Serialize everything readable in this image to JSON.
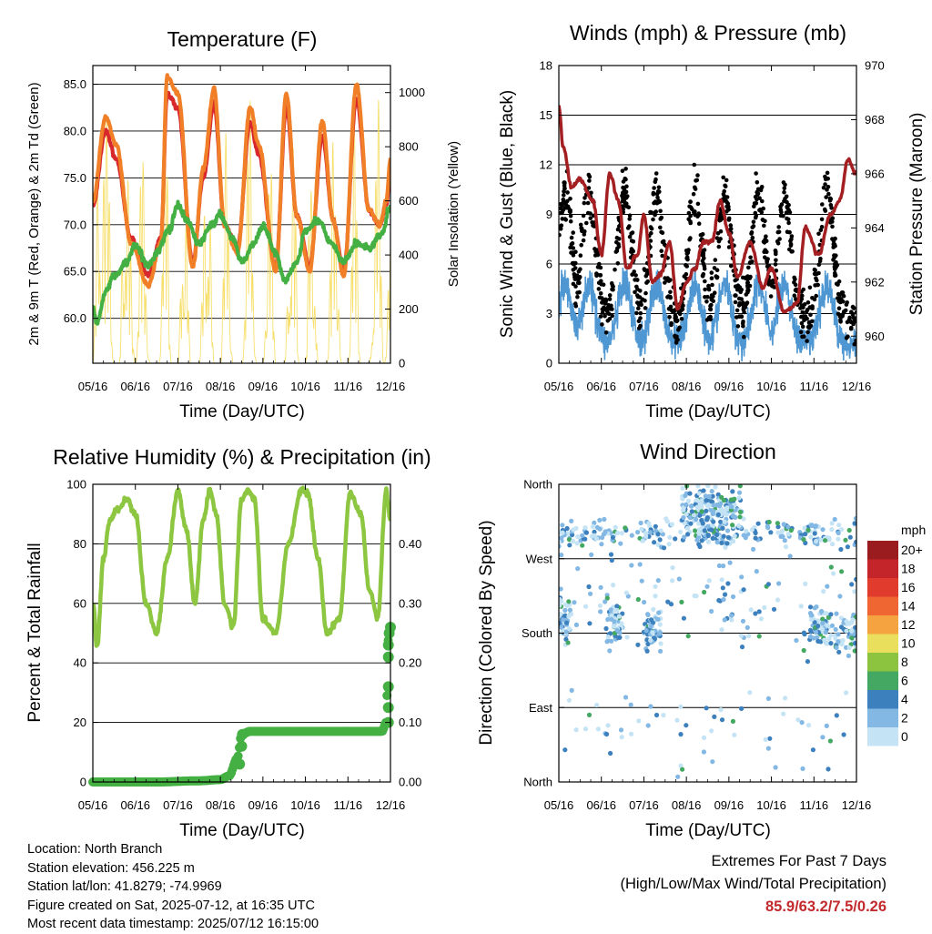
{
  "colors": {
    "temp2m": "#d8282b",
    "temp9m": "#f07f28",
    "dew": "#44b043",
    "solar": "#f6dc5c",
    "wind": "#4e97d2",
    "gust": "#000000",
    "pressure": "#a41f22",
    "rh": "#8dc640",
    "precip": "#44b043",
    "extremes": "#c22a2e"
  },
  "footer": {
    "location": "Location: North Branch",
    "elevation": "Station elevation: 456.225 m",
    "latlon": "Station lat/lon: 41.8279; -74.9969",
    "created": "Figure created on Sat, 2025-07-12, at 16:35 UTC",
    "recent": "Most recent data timestamp: 2025/07/12 16:15:00",
    "extremes_title": "Extremes For Past 7 Days",
    "extremes_sub": "(High/Low/Max Wind/Total Precipitation)",
    "extremes_values": "85.9/63.2/7.5/0.26"
  },
  "chart_data": [
    {
      "type": "line",
      "title": "Temperature (F)",
      "xlabel": "Time (Day/UTC)",
      "ylabel": "2m & 9m T (Red, Orange) & 2m Td (Green)",
      "y2label": "Solar Insolation (Yellow)",
      "x_ticks": [
        "05/16",
        "06/16",
        "07/16",
        "08/16",
        "09/16",
        "10/16",
        "11/16",
        "12/16"
      ],
      "y_ticks": [
        "60.0",
        "65.0",
        "70.0",
        "75.0",
        "80.0",
        "85.0"
      ],
      "y2_ticks": [
        "0",
        "200",
        "400",
        "600",
        "800",
        "1000"
      ],
      "ylim": [
        55.2,
        87.0
      ],
      "y2lim": [
        0,
        1100
      ],
      "grid": true,
      "series": [
        {
          "x": [
            0.0,
            0.3,
            0.55,
            0.9,
            1.3,
            1.6,
            1.75,
            2.0,
            2.35,
            2.6,
            2.85,
            3.1,
            3.4,
            3.7,
            3.9,
            4.3,
            4.55,
            4.8,
            5.1,
            5.4,
            5.65,
            5.9,
            6.2,
            6.5,
            6.75,
            6.9,
            7.0
          ],
          "values": [
            72.5,
            81.5,
            78.5,
            68.0,
            63.5,
            68.0,
            85.8,
            84.0,
            65.5,
            76.0,
            84.5,
            70.0,
            67.0,
            82.5,
            78.5,
            65.0,
            84.0,
            71.0,
            65.0,
            81.0,
            70.5,
            64.5,
            85.0,
            71.5,
            70.0,
            72.5,
            77.0
          ]
        },
        {
          "x": [
            0.0,
            0.3,
            0.55,
            0.9,
            1.3,
            1.6,
            1.75,
            2.0,
            2.35,
            2.6,
            2.85,
            3.1,
            3.4,
            3.7,
            3.9,
            4.3,
            4.55,
            4.8,
            5.1,
            5.4,
            5.65,
            5.9,
            6.2,
            6.5,
            6.75,
            6.9,
            7.0
          ],
          "values": [
            72.0,
            80.0,
            77.0,
            68.5,
            64.5,
            68.5,
            84.0,
            82.5,
            66.0,
            75.0,
            83.0,
            70.0,
            67.5,
            81.0,
            77.5,
            65.5,
            82.5,
            71.0,
            65.5,
            79.5,
            70.5,
            65.0,
            83.5,
            71.5,
            70.0,
            72.0,
            76.5
          ]
        },
        {
          "x": [
            0.0,
            0.1,
            0.3,
            0.5,
            0.8,
            1.0,
            1.3,
            1.5,
            1.8,
            2.0,
            2.2,
            2.5,
            2.8,
            3.0,
            3.3,
            3.5,
            3.8,
            4.0,
            4.3,
            4.5,
            4.8,
            5.0,
            5.3,
            5.6,
            5.9,
            6.2,
            6.5,
            6.8,
            7.0
          ],
          "values": [
            61.0,
            59.5,
            63.0,
            64.5,
            66.0,
            68.0,
            65.5,
            67.0,
            69.5,
            72.0,
            70.5,
            68.0,
            70.0,
            71.0,
            68.5,
            66.0,
            68.0,
            70.0,
            67.0,
            64.0,
            66.0,
            69.5,
            70.5,
            68.0,
            66.0,
            68.0,
            67.5,
            69.0,
            72.0
          ]
        },
        {
          "x": [
            0.0,
            0.15,
            0.35,
            0.5,
            0.62,
            0.75,
            1.0,
            1.15,
            1.35,
            1.55,
            1.7,
            1.85,
            2.0,
            2.15,
            2.3,
            2.5,
            2.7,
            2.85,
            3.0,
            3.15,
            3.3,
            3.5,
            3.7,
            3.85,
            4.0,
            4.15,
            4.3,
            4.5,
            4.7,
            4.85,
            5.0,
            5.15,
            5.3,
            5.5,
            5.7,
            5.85,
            6.0,
            6.15,
            6.3,
            6.5,
            6.7,
            6.85,
            7.0
          ],
          "values": [
            0,
            1000,
            900,
            0,
            0,
            1050,
            0,
            820,
            0,
            0,
            1080,
            0,
            0,
            960,
            0,
            0,
            1090,
            0,
            0,
            920,
            0,
            0,
            1050,
            0,
            0,
            980,
            0,
            0,
            1040,
            0,
            0,
            990,
            0,
            0,
            1060,
            0,
            0,
            940,
            0,
            0,
            1020,
            0,
            480
          ]
        }
      ]
    },
    {
      "type": "scatter",
      "title": "Winds (mph) & Pressure (mb)",
      "xlabel": "Time (Day/UTC)",
      "ylabel": "Sonic Wind & Gust (Blue, Black)",
      "y2label": "Station Pressure (Maroon)",
      "x_ticks": [
        "05/16",
        "06/16",
        "07/16",
        "08/16",
        "09/16",
        "10/16",
        "11/16",
        "12/16"
      ],
      "y_ticks": [
        "0",
        "3",
        "6",
        "9",
        "12",
        "15",
        "18"
      ],
      "y2_ticks": [
        "960",
        "962",
        "964",
        "966",
        "968",
        "970"
      ],
      "ylim": [
        0,
        18
      ],
      "y2lim": [
        959.0,
        970.0
      ],
      "grid": true,
      "series": [
        {
          "x": [
            0.0,
            0.1,
            0.3,
            0.5,
            0.8,
            1.0,
            1.2,
            1.4,
            1.6,
            1.85,
            2.0,
            2.2,
            2.4,
            2.6,
            2.8,
            3.0,
            3.2,
            3.4,
            3.6,
            3.8,
            4.0,
            4.2,
            4.5,
            4.8,
            5.0,
            5.3,
            5.6,
            5.8,
            6.1,
            6.4,
            6.6,
            6.8,
            7.0
          ],
          "values": [
            968.5,
            967.0,
            965.5,
            965.8,
            965.0,
            963.0,
            966.0,
            965.0,
            962.5,
            963.0,
            964.5,
            962.0,
            962.3,
            963.5,
            961.0,
            962.0,
            962.5,
            963.5,
            963.5,
            965.0,
            963.8,
            962.2,
            963.5,
            961.8,
            962.5,
            960.9,
            961.2,
            964.0,
            963.0,
            964.5,
            965.0,
            966.5,
            966.0
          ]
        }
      ]
    },
    {
      "type": "line",
      "title": "Relative Humidity (%) & Precipitation (in)",
      "xlabel": "Time (Day/UTC)",
      "ylabel": "Percent & Total Rainfall",
      "x_ticks": [
        "05/16",
        "06/16",
        "07/16",
        "08/16",
        "09/16",
        "10/16",
        "11/16",
        "12/16"
      ],
      "y_ticks": [
        "0",
        "20",
        "40",
        "60",
        "80",
        "100"
      ],
      "y2_ticks": [
        "0.00",
        "0.10",
        "0.20",
        "0.30",
        "0.40"
      ],
      "ylim": [
        0,
        100
      ],
      "y2lim": [
        0,
        0.5
      ],
      "grid": true,
      "series": [
        {
          "x": [
            0.0,
            0.1,
            0.25,
            0.4,
            0.6,
            0.8,
            1.0,
            1.25,
            1.5,
            1.75,
            2.0,
            2.2,
            2.4,
            2.6,
            2.75,
            2.9,
            3.1,
            3.3,
            3.5,
            3.65,
            3.8,
            4.0,
            4.3,
            4.6,
            4.9,
            5.05,
            5.3,
            5.5,
            5.8,
            6.05,
            6.3,
            6.5,
            6.7,
            6.9,
            7.0
          ],
          "values": [
            61,
            45,
            75,
            88,
            92,
            95,
            90,
            60,
            50,
            75,
            98,
            85,
            60,
            88,
            98,
            90,
            60,
            52,
            95,
            98,
            95,
            55,
            50,
            80,
            98,
            97,
            75,
            50,
            55,
            97,
            90,
            65,
            55,
            98,
            88
          ]
        },
        {
          "x": [
            0.0,
            1.5,
            2.5,
            3.0,
            3.2,
            3.4,
            3.5,
            3.7,
            4.0,
            5.0,
            6.0,
            6.8,
            6.9,
            6.95,
            7.0
          ],
          "values": [
            0.0,
            0.0,
            0.002,
            0.004,
            0.01,
            0.04,
            0.08,
            0.085,
            0.085,
            0.085,
            0.085,
            0.085,
            0.1,
            0.24,
            0.26
          ]
        }
      ]
    },
    {
      "type": "scatter",
      "title": "Wind Direction",
      "xlabel": "Time (Day/UTC)",
      "ylabel": "Direction (Colored By Speed)",
      "x_ticks": [
        "05/16",
        "06/16",
        "07/16",
        "08/16",
        "09/16",
        "10/16",
        "11/16",
        "12/16"
      ],
      "y_ticks": [
        "North",
        "East",
        "South",
        "West",
        "North"
      ],
      "ylim": [
        0,
        360
      ],
      "grid": true,
      "legend": {
        "title": "mph",
        "labels": [
          "20+",
          "18",
          "16",
          "14",
          "12",
          "10",
          "8",
          "6",
          "4",
          "2",
          "0"
        ],
        "colors": [
          "#9b1c1f",
          "#c4252a",
          "#e03b2d",
          "#f06632",
          "#f5a340",
          "#e9df5c",
          "#8cc43f",
          "#44a862",
          "#3d80be",
          "#82b8e3",
          "#c4e3f5"
        ],
        "placement": "right"
      },
      "series": [
        {
          "name": "",
          "values": []
        }
      ]
    }
  ]
}
